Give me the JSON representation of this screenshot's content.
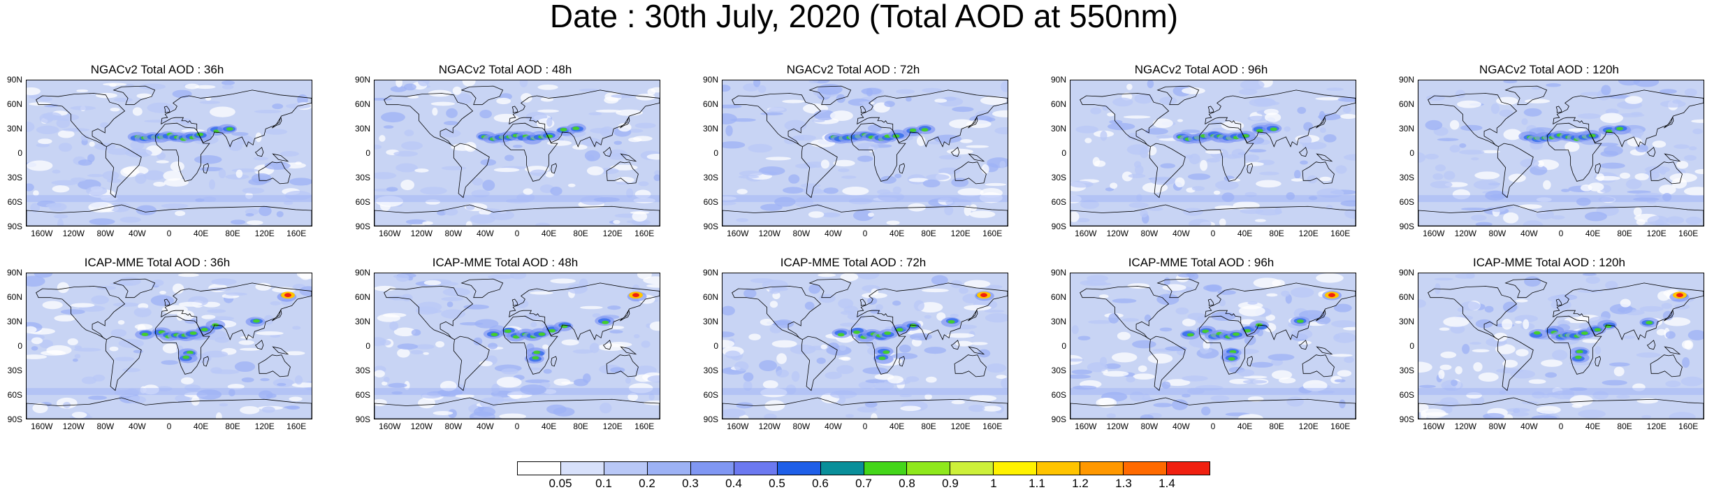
{
  "title": "Date : 30th July, 2020 (Total AOD at 550nm)",
  "lat_ticks": [
    "90N",
    "60N",
    "30N",
    "0",
    "30S",
    "60S",
    "90S"
  ],
  "lon_ticks": [
    "160W",
    "120W",
    "80W",
    "40W",
    "0",
    "40E",
    "80E",
    "120E",
    "160E"
  ],
  "panels": [
    {
      "title": "NGACv2 Total AOD : 36h",
      "model": "NGACv2",
      "forecast_hour": 36
    },
    {
      "title": "NGACv2 Total AOD : 48h",
      "model": "NGACv2",
      "forecast_hour": 48
    },
    {
      "title": "NGACv2 Total AOD : 72h",
      "model": "NGACv2",
      "forecast_hour": 72
    },
    {
      "title": "NGACv2 Total AOD : 96h",
      "model": "NGACv2",
      "forecast_hour": 96
    },
    {
      "title": "NGACv2 Total AOD : 120h",
      "model": "NGACv2",
      "forecast_hour": 120
    },
    {
      "title": "ICAP-MME Total AOD : 36h",
      "model": "ICAP-MME",
      "forecast_hour": 36
    },
    {
      "title": "ICAP-MME Total AOD : 48h",
      "model": "ICAP-MME",
      "forecast_hour": 48
    },
    {
      "title": "ICAP-MME Total AOD : 72h",
      "model": "ICAP-MME",
      "forecast_hour": 72
    },
    {
      "title": "ICAP-MME Total AOD : 96h",
      "model": "ICAP-MME",
      "forecast_hour": 96
    },
    {
      "title": "ICAP-MME Total AOD : 120h",
      "model": "ICAP-MME",
      "forecast_hour": 120
    }
  ],
  "colorbar": {
    "labels": [
      "0.05",
      "0.1",
      "0.2",
      "0.3",
      "0.4",
      "0.5",
      "0.6",
      "0.7",
      "0.8",
      "0.9",
      "1",
      "1.1",
      "1.2",
      "1.3",
      "1.4"
    ],
    "colors": [
      "#ffffff",
      "#d8e1fb",
      "#b9c8f7",
      "#9db2f5",
      "#8097f3",
      "#6c79f0",
      "#1f5fe8",
      "#0a8f9a",
      "#44d61a",
      "#8fe81c",
      "#cdf03a",
      "#fff200",
      "#ffc400",
      "#ff9800",
      "#ff6a00",
      "#f02010"
    ]
  }
}
